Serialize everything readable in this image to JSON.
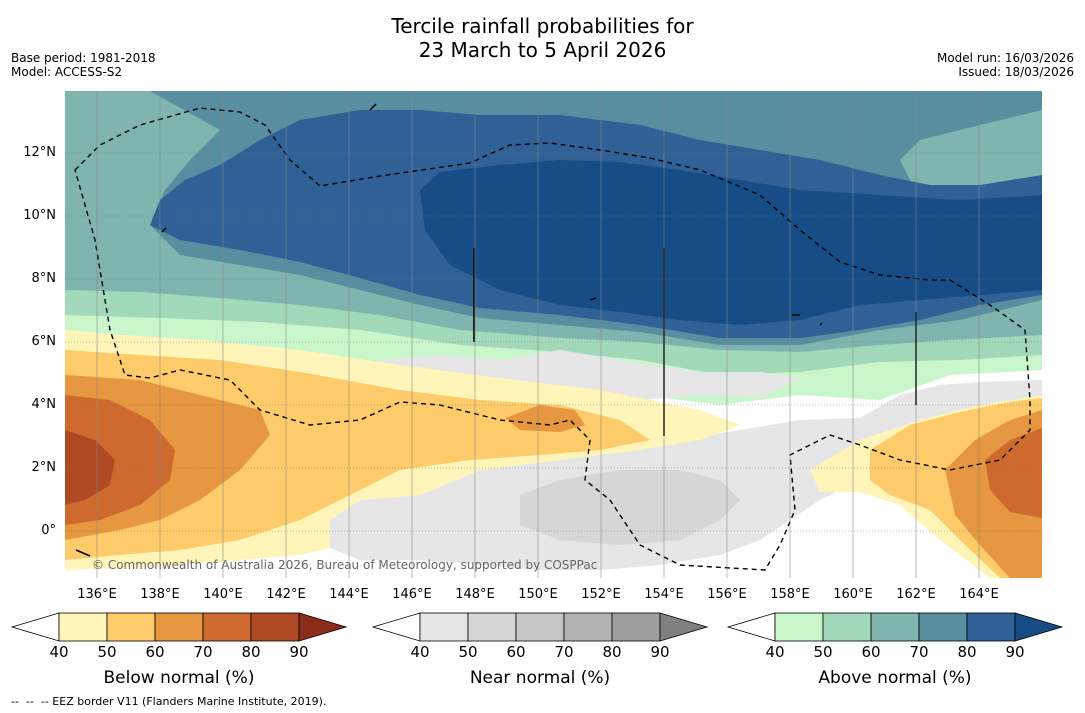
{
  "title": {
    "line1": "Tercile rainfall probabilities for",
    "line2": "23 March to 5 April 2026"
  },
  "meta_left": {
    "base_period": "Base period: 1981-2018",
    "model": "Model: ACCESS-S2"
  },
  "meta_right": {
    "model_run": "Model run: 16/03/2026",
    "issued": "Issued: 18/03/2026"
  },
  "map": {
    "latitude_labels": [
      "12°N",
      "10°N",
      "8°N",
      "6°N",
      "4°N",
      "2°N",
      "0°"
    ],
    "longitude_labels": [
      "136°E",
      "138°E",
      "140°E",
      "142°E",
      "144°E",
      "146°E",
      "148°E",
      "150°E",
      "152°E",
      "154°E",
      "156°E",
      "158°E",
      "160°E",
      "162°E",
      "164°E"
    ],
    "copyright": "© Commonwealth of Australia 2026, Bureau of Meteorology, supported by COSPPac"
  },
  "colorbars": [
    {
      "name": "below",
      "title": "Below normal (%)",
      "ticks": [
        "40",
        "50",
        "60",
        "70",
        "80",
        "90"
      ],
      "colors": [
        "#fff5b8",
        "#fdcb6a",
        "#e6973f",
        "#cf6a2f",
        "#b04a24",
        "#8c2d1a"
      ]
    },
    {
      "name": "near",
      "title": "Near normal (%)",
      "ticks": [
        "40",
        "50",
        "60",
        "70",
        "80",
        "90"
      ],
      "colors": [
        "#e6e6e6",
        "#d6d6d6",
        "#c6c6c6",
        "#b3b3b3",
        "#9e9e9e",
        "#808080"
      ]
    },
    {
      "name": "above",
      "title": "Above normal (%)",
      "ticks": [
        "40",
        "50",
        "60",
        "70",
        "80",
        "90"
      ],
      "colors": [
        "#c9f7cb",
        "#a3d9bb",
        "#7fb5ae",
        "#578fa0",
        "#2f6196",
        "#164d86"
      ]
    }
  ],
  "footnote": "--  --  -- EEZ border V11 (Flanders Marine Institute, 2019)."
}
